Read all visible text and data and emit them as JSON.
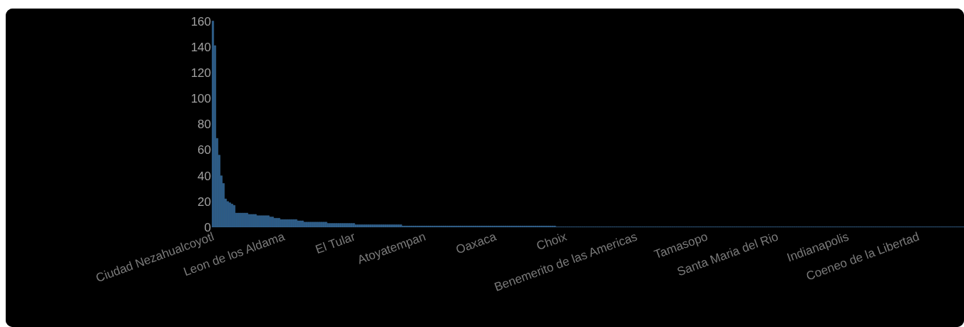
{
  "chart_data": {
    "type": "bar",
    "color": "#2b5b87",
    "categories": [
      "Ciudad Nezahualcoyotl",
      null,
      null,
      null,
      null,
      null,
      null,
      null,
      null,
      null,
      null,
      null,
      null,
      null,
      null,
      null,
      null,
      null,
      null,
      null,
      null,
      null,
      null,
      null,
      null,
      null,
      null,
      null,
      null,
      null,
      null,
      null,
      null,
      "Leon de los Aldama",
      null,
      null,
      null,
      null,
      null,
      null,
      null,
      null,
      null,
      null,
      null,
      null,
      null,
      null,
      null,
      null,
      null,
      null,
      null,
      null,
      null,
      null,
      null,
      null,
      null,
      null,
      null,
      null,
      null,
      null,
      null,
      null,
      "El Tular",
      null,
      null,
      null,
      null,
      null,
      null,
      null,
      null,
      null,
      null,
      null,
      null,
      null,
      null,
      null,
      null,
      null,
      null,
      null,
      null,
      null,
      null,
      null,
      null,
      null,
      null,
      null,
      null,
      null,
      null,
      null,
      null,
      "Atoyatempan",
      null,
      null,
      null,
      null,
      null,
      null,
      null,
      null,
      null,
      null,
      null,
      null,
      null,
      null,
      null,
      null,
      null,
      null,
      null,
      null,
      null,
      null,
      null,
      null,
      null,
      null,
      null,
      null,
      null,
      null,
      null,
      null,
      "Oaxaca",
      null,
      null,
      null,
      null,
      null,
      null,
      null,
      null,
      null,
      null,
      null,
      null,
      null,
      null,
      null,
      null,
      null,
      null,
      null,
      null,
      null,
      null,
      null,
      null,
      null,
      null,
      null,
      null,
      null,
      null,
      null,
      null,
      "Choix",
      null,
      null,
      null,
      null,
      null,
      null,
      null,
      null,
      null,
      null,
      null,
      null,
      null,
      null,
      null,
      null,
      null,
      null,
      null,
      null,
      null,
      null,
      null,
      null,
      null,
      null,
      null,
      null,
      null,
      null,
      null,
      null,
      "Benemerito de las Americas",
      null,
      null,
      null,
      null,
      null,
      null,
      null,
      null,
      null,
      null,
      null,
      null,
      null,
      null,
      null,
      null,
      null,
      null,
      null,
      null,
      null,
      null,
      null,
      null,
      null,
      null,
      null,
      null,
      null,
      null,
      null,
      null,
      "Tamasopo",
      null,
      null,
      null,
      null,
      null,
      null,
      null,
      null,
      null,
      null,
      null,
      null,
      null,
      null,
      null,
      null,
      null,
      null,
      null,
      null,
      null,
      null,
      null,
      null,
      null,
      null,
      null,
      null,
      null,
      null,
      null,
      null,
      "Santa Maria del Rio",
      null,
      null,
      null,
      null,
      null,
      null,
      null,
      null,
      null,
      null,
      null,
      null,
      null,
      null,
      null,
      null,
      null,
      null,
      null,
      null,
      null,
      null,
      null,
      null,
      null,
      null,
      null,
      null,
      null,
      null,
      null,
      null,
      "Indianapolis",
      null,
      null,
      null,
      null,
      null,
      null,
      null,
      null,
      null,
      null,
      null,
      null,
      null,
      null,
      null,
      null,
      null,
      null,
      null,
      null,
      null,
      null,
      null,
      null,
      null,
      null,
      null,
      null,
      null,
      null,
      null,
      null,
      "Coeneo de la Libertad",
      null,
      null,
      null,
      null,
      null,
      null,
      null,
      null,
      null,
      null,
      null,
      null,
      null,
      null,
      null,
      null,
      null,
      null,
      null,
      null,
      null
    ],
    "values": [
      160,
      141,
      69,
      56,
      40,
      34,
      22,
      20,
      19,
      18,
      17,
      11,
      11,
      11,
      11,
      11,
      11,
      10,
      10,
      10,
      10,
      9,
      9,
      9,
      9,
      9,
      9,
      8,
      8,
      7,
      7,
      7,
      6,
      6,
      6,
      6,
      6,
      6,
      6,
      6,
      5,
      5,
      5,
      4,
      4,
      4,
      4,
      4,
      4,
      4,
      4,
      4,
      4,
      4,
      3,
      3,
      3,
      3,
      3,
      3,
      3,
      3,
      3,
      3,
      3,
      3,
      3,
      2,
      2,
      2,
      2,
      2,
      2,
      2,
      2,
      2,
      2,
      2,
      2,
      2,
      2,
      2,
      2,
      2,
      2,
      2,
      2,
      2,
      2,
      1,
      1,
      1,
      1,
      1,
      1,
      1,
      1,
      1,
      1,
      1,
      1,
      1,
      1,
      1,
      1,
      1,
      1,
      1,
      1,
      1,
      1,
      1,
      1,
      1,
      1,
      1,
      1,
      1,
      1,
      1,
      1,
      1,
      1,
      1,
      1,
      1,
      1,
      1,
      1,
      1,
      1,
      1,
      1,
      1,
      1,
      1,
      1,
      1,
      1,
      1,
      1,
      1,
      1,
      1,
      1,
      1,
      1,
      1,
      1,
      1,
      1,
      1,
      1,
      1,
      1,
      1,
      1,
      1,
      1,
      1,
      1,
      0.3,
      0.3,
      0.3,
      0.3,
      0.3,
      0.3,
      0.3,
      0.3,
      0.3,
      0.3,
      0.3,
      0.3,
      0.3,
      0.3,
      0.3,
      0.3,
      0.3,
      0.3,
      0.3,
      0.3,
      0.3,
      0.3,
      0.3,
      0.3,
      0.3,
      0.3,
      0.3,
      0.3,
      0.3,
      0.3,
      0.3,
      0.3,
      0.3,
      0.3,
      0.3,
      0.3,
      0.3,
      0.3,
      0.3,
      0.3,
      0.3,
      0.3,
      0.3,
      0.3,
      0.3,
      0.3,
      0.3,
      0.3,
      0.3,
      0.3,
      0.3,
      0.3,
      0.3,
      0.3,
      0.3,
      0.3,
      0.3,
      0.3,
      0.3,
      0.3,
      0.3,
      0.3,
      0.3,
      0.3,
      0.3,
      0.3,
      0.3,
      0.3,
      0.3,
      0.3,
      0.3,
      0.3,
      0.3,
      0.3,
      0.3,
      0.3,
      0.3,
      0.3,
      0.3,
      0.3,
      0.3,
      0.3,
      0.3,
      0.3,
      0.3,
      0.3,
      0.3,
      0.3,
      0.3,
      0.3,
      0.3,
      0.3,
      0.3,
      0.3,
      0.3,
      0.3,
      0.3,
      0.3,
      0.3,
      0.3,
      0.3,
      0.3,
      0.3,
      0.3,
      0.3,
      0.3,
      0.3,
      0.3,
      0.3,
      0.3,
      0.3,
      0.3,
      0.3,
      0.3,
      0.3,
      0.3,
      0.3,
      0.3,
      0.3,
      0.3,
      0.3,
      0.3,
      0.3,
      0.3,
      0.3,
      0.3,
      0.3,
      0.3,
      0.3,
      0.3,
      0.3,
      0.3,
      0.3,
      0.3,
      0.3,
      0.3,
      0.3,
      0.3,
      0.3,
      0.3,
      0.3,
      0.3,
      0.3,
      0.3,
      0.3,
      0.3,
      0.3,
      0.3,
      0.3,
      0.3,
      0.3,
      0.3,
      0.3,
      0.3,
      0.3,
      0.3,
      0.3,
      0.3,
      0.3,
      0.3,
      0.3,
      0.3,
      0.3,
      0.3,
      0.3,
      0.3,
      0.3,
      0.3,
      0.3,
      0.3,
      0.3,
      0.3,
      0.3,
      0.3,
      0.3,
      0.3,
      0.3,
      0.3,
      0.3,
      0.3,
      0.3,
      0.3,
      0.3,
      0.3,
      0.3,
      0.3,
      0.3,
      0.3,
      0.3,
      0.3,
      0.3
    ],
    "ylim": [
      0,
      162
    ],
    "yticks": [
      0,
      20,
      40,
      60,
      80,
      100,
      120,
      140,
      160
    ],
    "grid": false
  }
}
